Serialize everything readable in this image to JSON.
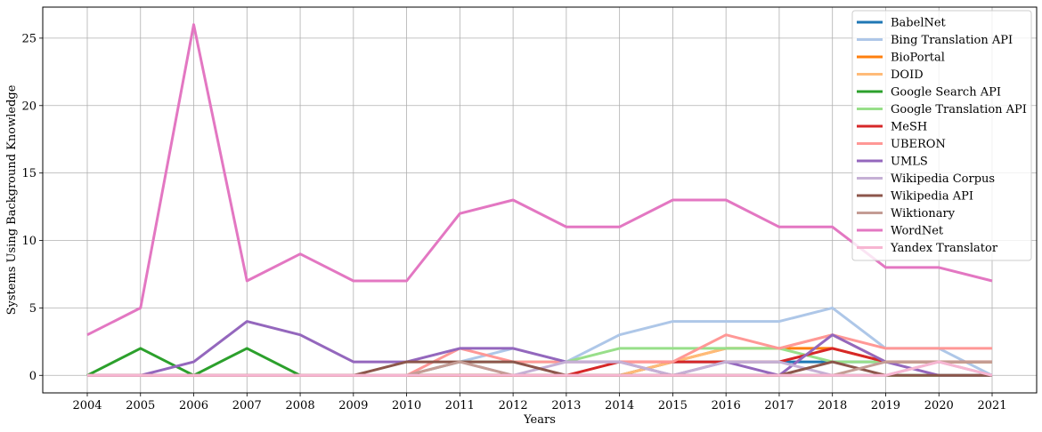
{
  "chart_data": {
    "type": "line",
    "title": "",
    "xlabel": "Years",
    "ylabel": "Systems Using Background Knowledge",
    "x": [
      "2004",
      "2005",
      "2006",
      "2007",
      "2008",
      "2009",
      "2010",
      "2011",
      "2012",
      "2013",
      "2014",
      "2015",
      "2016",
      "2017",
      "2018",
      "2019",
      "2020",
      "2021"
    ],
    "y_ticks": [
      0,
      5,
      10,
      15,
      20,
      25
    ],
    "ylim": [
      -1.3,
      27.3
    ],
    "grid": true,
    "legend_position": "top-right",
    "series": [
      {
        "name": "BabelNet",
        "color": "#1f77b4",
        "values": [
          0,
          0,
          0,
          0,
          0,
          0,
          0,
          0,
          0,
          0,
          0,
          1,
          1,
          1,
          1,
          1,
          1,
          1
        ]
      },
      {
        "name": "Bing Translation API",
        "color": "#aec7e8",
        "values": [
          0,
          0,
          0,
          0,
          0,
          0,
          0,
          1,
          2,
          1,
          3,
          4,
          4,
          4,
          5,
          2,
          2,
          0
        ]
      },
      {
        "name": "BioPortal",
        "color": "#ff7f0e",
        "values": [
          0,
          0,
          0,
          0,
          0,
          0,
          0,
          0,
          0,
          0,
          0,
          1,
          2,
          2,
          2,
          1,
          1,
          1
        ]
      },
      {
        "name": "DOID",
        "color": "#ffbb78",
        "values": [
          0,
          0,
          0,
          0,
          0,
          0,
          0,
          0,
          0,
          0,
          0,
          1,
          2,
          2,
          3,
          1,
          1,
          1
        ]
      },
      {
        "name": "Google Search API",
        "color": "#2ca02c",
        "values": [
          0,
          2,
          0,
          2,
          0,
          0,
          0,
          0,
          0,
          0,
          0,
          0,
          0,
          0,
          0,
          0,
          0,
          0
        ]
      },
      {
        "name": "Google Translation API",
        "color": "#98df8a",
        "values": [
          0,
          0,
          0,
          0,
          0,
          0,
          0,
          1,
          1,
          1,
          2,
          2,
          2,
          2,
          1,
          1,
          1,
          1
        ]
      },
      {
        "name": "MeSH",
        "color": "#d62728",
        "values": [
          0,
          0,
          0,
          0,
          0,
          0,
          0,
          0,
          0,
          0,
          1,
          1,
          1,
          1,
          2,
          1,
          1,
          1
        ]
      },
      {
        "name": "UBERON",
        "color": "#ff9896",
        "values": [
          0,
          0,
          0,
          0,
          0,
          0,
          0,
          2,
          1,
          1,
          1,
          1,
          3,
          2,
          3,
          2,
          2,
          2
        ]
      },
      {
        "name": "UMLS",
        "color": "#9467bd",
        "values": [
          0,
          0,
          1,
          4,
          3,
          1,
          1,
          2,
          2,
          1,
          1,
          0,
          1,
          0,
          3,
          1,
          0,
          0
        ]
      },
      {
        "name": "Wikipedia Corpus",
        "color": "#c5b0d5",
        "values": [
          0,
          0,
          0,
          0,
          0,
          0,
          0,
          1,
          0,
          1,
          1,
          0,
          1,
          1,
          0,
          0,
          1,
          0
        ]
      },
      {
        "name": "Wikipedia API",
        "color": "#8c564b",
        "values": [
          0,
          0,
          0,
          0,
          0,
          0,
          1,
          1,
          1,
          0,
          0,
          0,
          0,
          0,
          1,
          0,
          0,
          0
        ]
      },
      {
        "name": "Wiktionary",
        "color": "#c49c94",
        "values": [
          0,
          0,
          0,
          0,
          0,
          0,
          0,
          1,
          0,
          0,
          0,
          0,
          0,
          0,
          0,
          1,
          1,
          1
        ]
      },
      {
        "name": "WordNet",
        "color": "#e377c2",
        "values": [
          3,
          5,
          26,
          7,
          9,
          7,
          7,
          12,
          13,
          11,
          11,
          13,
          13,
          11,
          11,
          8,
          8,
          7
        ]
      },
      {
        "name": "Yandex Translator",
        "color": "#f7b6d2",
        "values": [
          0,
          0,
          0,
          0,
          0,
          0,
          0,
          0,
          0,
          0,
          0,
          0,
          0,
          0,
          0,
          0,
          1,
          0
        ]
      }
    ]
  }
}
